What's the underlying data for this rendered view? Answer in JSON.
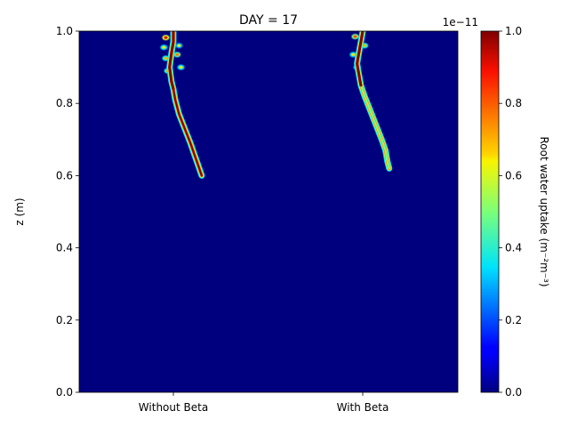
{
  "chart_data": {
    "type": "heatmap",
    "title": "DAY = 17",
    "xlabel": "",
    "ylabel": "z (m)",
    "categories": [
      "Without Beta",
      "With Beta"
    ],
    "ylim": [
      0,
      1.0
    ],
    "yticks": [
      "0.0",
      "0.2",
      "0.4",
      "0.6",
      "0.8",
      "1.0"
    ],
    "grid": false,
    "background_value": 0,
    "colormap": "jet",
    "colorbar": {
      "label": "Root water uptake (m⁻²m⁻³)",
      "range": [
        0,
        1.0
      ],
      "ticks": [
        "0.0",
        "0.2",
        "0.4",
        "0.6",
        "0.8",
        "1.0"
      ],
      "offset_text": "1e−11"
    },
    "series": [
      {
        "root_path": [
          [
            0.0,
            1.0
          ],
          [
            0.0,
            0.97
          ],
          [
            -0.01,
            0.94
          ],
          [
            -0.02,
            0.9
          ],
          [
            -0.01,
            0.86
          ],
          [
            0.0,
            0.84
          ],
          [
            0.01,
            0.81
          ],
          [
            0.03,
            0.77
          ],
          [
            0.06,
            0.73
          ],
          [
            0.09,
            0.69
          ],
          [
            0.11,
            0.66
          ],
          [
            0.13,
            0.63
          ],
          [
            0.15,
            0.6
          ]
        ],
        "root_value": 1.0,
        "side_blobs": [
          [
            -0.04,
            0.982,
            0.6
          ],
          [
            -0.05,
            0.955,
            0.35
          ],
          [
            -0.04,
            0.925,
            0.4
          ],
          [
            0.02,
            0.935,
            0.45
          ],
          [
            0.04,
            0.9,
            0.35
          ],
          [
            -0.03,
            0.89,
            0.4
          ],
          [
            0.03,
            0.96,
            0.3
          ]
        ]
      },
      {
        "root_path": [
          [
            0.0,
            1.0
          ],
          [
            -0.01,
            0.97
          ],
          [
            -0.02,
            0.94
          ],
          [
            -0.03,
            0.91
          ],
          [
            -0.02,
            0.88
          ],
          [
            -0.01,
            0.85
          ],
          [
            0.01,
            0.82
          ],
          [
            0.04,
            0.78
          ],
          [
            0.07,
            0.74
          ],
          [
            0.1,
            0.7
          ],
          [
            0.12,
            0.67
          ],
          [
            0.13,
            0.64
          ],
          [
            0.14,
            0.62
          ]
        ],
        "root_value": 0.5,
        "side_blobs": [
          [
            -0.04,
            0.985,
            0.5
          ],
          [
            -0.05,
            0.935,
            0.35
          ],
          [
            0.01,
            0.96,
            0.4
          ],
          [
            -0.03,
            0.9,
            0.35
          ]
        ]
      }
    ]
  }
}
